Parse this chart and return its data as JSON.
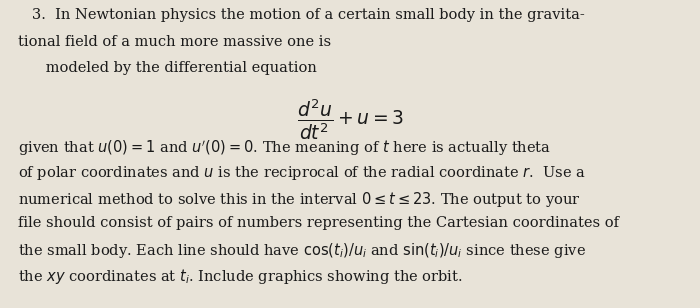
{
  "background_color": "#e8e3d8",
  "text_color": "#1a1a1a",
  "figsize": [
    7.0,
    3.08
  ],
  "dpi": 100,
  "line1": "   3.  In Newtonian physics the motion of a certain small body in the gravita-",
  "line2": "tional field of a much more massive one is",
  "line3": "      modeled by the differential equation",
  "equation": "$\\dfrac{d^2u}{dt^2} + u = 3$",
  "para1": "given that $u(0) = 1$ and $u'(0) = 0$. The meaning of $t$ here is actually theta",
  "para2": "of polar coordinates and $u$ is the reciprocal of the radial coordinate $r$.  Use a",
  "para3": "numerical method to solve this in the interval $0 \\leq t \\leq 23$. The output to your",
  "para4": "file should consist of pairs of numbers representing the Cartesian coordinates of",
  "para5": "the small body. Each line should have $\\cos(t_i)/u_i$ and $\\sin(t_i)/u_i$ since these give",
  "para6": "the $xy$ coordinates at $t_i$. Include graphics showing the orbit.",
  "fontsize_main": 10.5,
  "fontsize_eq": 13.5
}
